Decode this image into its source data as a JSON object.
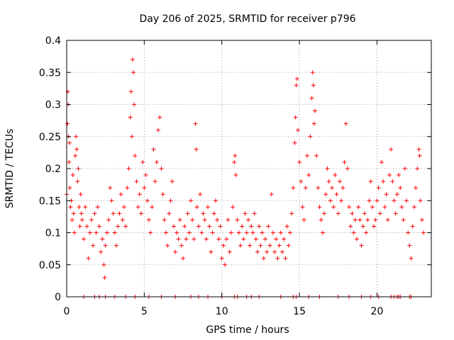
{
  "chart_data": {
    "type": "scatter",
    "title": "Day 206 of 2025, SRMTID for receiver p796",
    "xlabel": "GPS time / hours",
    "ylabel": "SRMTID / TECUs",
    "xlim": [
      0,
      23.5
    ],
    "ylim": [
      0,
      0.4
    ],
    "x_ticks": [
      0,
      5,
      10,
      15,
      20
    ],
    "x_tick_labels": [
      "0",
      "5",
      "10",
      "15",
      "20"
    ],
    "y_ticks": [
      0,
      0.05,
      0.1,
      0.15,
      0.2,
      0.25,
      0.3,
      0.35,
      0.4
    ],
    "y_tick_labels": [
      "0",
      "0.05",
      "0.1",
      "0.15",
      "0.2",
      "0.25",
      "0.3",
      "0.35",
      "0.4"
    ],
    "grid": true,
    "marker": "+",
    "color": "#ff0000",
    "series": [
      {
        "name": "SRMTID",
        "points": [
          [
            0.0,
            0.16
          ],
          [
            0.05,
            0.27
          ],
          [
            0.08,
            0.32
          ],
          [
            0.1,
            0.3
          ],
          [
            0.12,
            0.25
          ],
          [
            0.15,
            0.21
          ],
          [
            0.18,
            0.24
          ],
          [
            0.2,
            0.17
          ],
          [
            0.25,
            0.14
          ],
          [
            0.3,
            0.15
          ],
          [
            0.35,
            0.12
          ],
          [
            0.4,
            0.19
          ],
          [
            0.45,
            0.13
          ],
          [
            0.5,
            0.1
          ],
          [
            0.55,
            0.22
          ],
          [
            0.6,
            0.25
          ],
          [
            0.65,
            0.23
          ],
          [
            0.7,
            0.18
          ],
          [
            0.75,
            0.2
          ],
          [
            0.8,
            0.14
          ],
          [
            0.85,
            0.11
          ],
          [
            0.9,
            0.16
          ],
          [
            0.95,
            0.13
          ],
          [
            1.0,
            0.12
          ],
          [
            1.1,
            0.09
          ],
          [
            1.2,
            0.14
          ],
          [
            1.3,
            0.11
          ],
          [
            1.4,
            0.06
          ],
          [
            1.5,
            0.1
          ],
          [
            1.6,
            0.12
          ],
          [
            1.7,
            0.08
          ],
          [
            1.8,
            0.13
          ],
          [
            1.9,
            0.1
          ],
          [
            2.0,
            0.14
          ],
          [
            2.1,
            0.11
          ],
          [
            2.2,
            0.07
          ],
          [
            2.3,
            0.09
          ],
          [
            2.4,
            0.05
          ],
          [
            2.45,
            0.03
          ],
          [
            2.5,
            0.08
          ],
          [
            2.6,
            0.1
          ],
          [
            2.7,
            0.12
          ],
          [
            2.8,
            0.17
          ],
          [
            2.9,
            0.15
          ],
          [
            3.0,
            0.13
          ],
          [
            3.1,
            0.1
          ],
          [
            3.2,
            0.08
          ],
          [
            3.3,
            0.11
          ],
          [
            3.4,
            0.13
          ],
          [
            3.5,
            0.16
          ],
          [
            3.6,
            0.12
          ],
          [
            3.7,
            0.14
          ],
          [
            3.8,
            0.11
          ],
          [
            3.9,
            0.17
          ],
          [
            4.0,
            0.2
          ],
          [
            4.1,
            0.28
          ],
          [
            4.15,
            0.32
          ],
          [
            4.2,
            0.25
          ],
          [
            4.25,
            0.37
          ],
          [
            4.3,
            0.35
          ],
          [
            4.35,
            0.3
          ],
          [
            4.4,
            0.22
          ],
          [
            4.5,
            0.18
          ],
          [
            4.6,
            0.14
          ],
          [
            4.7,
            0.16
          ],
          [
            4.8,
            0.13
          ],
          [
            4.9,
            0.21
          ],
          [
            5.0,
            0.17
          ],
          [
            5.1,
            0.19
          ],
          [
            5.2,
            0.15
          ],
          [
            5.3,
            0.12
          ],
          [
            5.4,
            0.1
          ],
          [
            5.5,
            0.14
          ],
          [
            5.6,
            0.23
          ],
          [
            5.7,
            0.18
          ],
          [
            5.8,
            0.21
          ],
          [
            5.9,
            0.26
          ],
          [
            6.0,
            0.28
          ],
          [
            6.1,
            0.2
          ],
          [
            6.2,
            0.16
          ],
          [
            6.3,
            0.12
          ],
          [
            6.4,
            0.1
          ],
          [
            6.5,
            0.08
          ],
          [
            6.6,
            0.13
          ],
          [
            6.7,
            0.15
          ],
          [
            6.8,
            0.18
          ],
          [
            6.9,
            0.11
          ],
          [
            7.0,
            0.07
          ],
          [
            7.1,
            0.1
          ],
          [
            7.2,
            0.09
          ],
          [
            7.3,
            0.12
          ],
          [
            7.4,
            0.08
          ],
          [
            7.5,
            0.06
          ],
          [
            7.6,
            0.11
          ],
          [
            7.7,
            0.09
          ],
          [
            7.8,
            0.13
          ],
          [
            7.9,
            0.1
          ],
          [
            8.0,
            0.15
          ],
          [
            8.1,
            0.12
          ],
          [
            8.2,
            0.09
          ],
          [
            8.3,
            0.27
          ],
          [
            8.35,
            0.23
          ],
          [
            8.4,
            0.14
          ],
          [
            8.5,
            0.11
          ],
          [
            8.6,
            0.16
          ],
          [
            8.7,
            0.1
          ],
          [
            8.8,
            0.13
          ],
          [
            8.9,
            0.12
          ],
          [
            9.0,
            0.09
          ],
          [
            9.1,
            0.14
          ],
          [
            9.2,
            0.11
          ],
          [
            9.3,
            0.07
          ],
          [
            9.4,
            0.1
          ],
          [
            9.5,
            0.13
          ],
          [
            9.6,
            0.15
          ],
          [
            9.7,
            0.12
          ],
          [
            9.8,
            0.09
          ],
          [
            9.9,
            0.11
          ],
          [
            10.0,
            0.06
          ],
          [
            10.1,
            0.08
          ],
          [
            10.2,
            0.05
          ],
          [
            10.3,
            0.09
          ],
          [
            10.4,
            0.12
          ],
          [
            10.5,
            0.07
          ],
          [
            10.6,
            0.1
          ],
          [
            10.7,
            0.14
          ],
          [
            10.8,
            0.21
          ],
          [
            10.85,
            0.22
          ],
          [
            10.9,
            0.19
          ],
          [
            11.0,
            0.12
          ],
          [
            11.1,
            0.1
          ],
          [
            11.2,
            0.08
          ],
          [
            11.3,
            0.11
          ],
          [
            11.4,
            0.09
          ],
          [
            11.5,
            0.13
          ],
          [
            11.6,
            0.1
          ],
          [
            11.7,
            0.12
          ],
          [
            11.8,
            0.08
          ],
          [
            11.9,
            0.11
          ],
          [
            12.0,
            0.1
          ],
          [
            12.1,
            0.13
          ],
          [
            12.2,
            0.09
          ],
          [
            12.3,
            0.07
          ],
          [
            12.4,
            0.11
          ],
          [
            12.5,
            0.08
          ],
          [
            12.6,
            0.1
          ],
          [
            12.7,
            0.06
          ],
          [
            12.8,
            0.09
          ],
          [
            12.9,
            0.07
          ],
          [
            13.0,
            0.11
          ],
          [
            13.1,
            0.08
          ],
          [
            13.2,
            0.16
          ],
          [
            13.3,
            0.1
          ],
          [
            13.4,
            0.07
          ],
          [
            13.5,
            0.09
          ],
          [
            13.6,
            0.06
          ],
          [
            13.7,
            0.08
          ],
          [
            13.8,
            0.1
          ],
          [
            13.9,
            0.07
          ],
          [
            14.0,
            0.09
          ],
          [
            14.1,
            0.06
          ],
          [
            14.2,
            0.11
          ],
          [
            14.3,
            0.08
          ],
          [
            14.4,
            0.1
          ],
          [
            14.5,
            0.13
          ],
          [
            14.6,
            0.17
          ],
          [
            14.7,
            0.24
          ],
          [
            14.75,
            0.28
          ],
          [
            14.8,
            0.33
          ],
          [
            14.85,
            0.34
          ],
          [
            14.9,
            0.26
          ],
          [
            15.0,
            0.21
          ],
          [
            15.1,
            0.18
          ],
          [
            15.2,
            0.14
          ],
          [
            15.3,
            0.12
          ],
          [
            15.4,
            0.17
          ],
          [
            15.5,
            0.22
          ],
          [
            15.6,
            0.19
          ],
          [
            15.7,
            0.25
          ],
          [
            15.8,
            0.31
          ],
          [
            15.85,
            0.35
          ],
          [
            15.9,
            0.33
          ],
          [
            15.95,
            0.27
          ],
          [
            16.0,
            0.29
          ],
          [
            16.1,
            0.22
          ],
          [
            16.2,
            0.17
          ],
          [
            16.3,
            0.14
          ],
          [
            16.4,
            0.12
          ],
          [
            16.5,
            0.1
          ],
          [
            16.6,
            0.13
          ],
          [
            16.7,
            0.16
          ],
          [
            16.8,
            0.2
          ],
          [
            16.9,
            0.18
          ],
          [
            17.0,
            0.15
          ],
          [
            17.1,
            0.17
          ],
          [
            17.2,
            0.14
          ],
          [
            17.3,
            0.19
          ],
          [
            17.4,
            0.16
          ],
          [
            17.5,
            0.13
          ],
          [
            17.6,
            0.18
          ],
          [
            17.7,
            0.15
          ],
          [
            17.8,
            0.17
          ],
          [
            17.9,
            0.21
          ],
          [
            18.0,
            0.27
          ],
          [
            18.1,
            0.2
          ],
          [
            18.2,
            0.14
          ],
          [
            18.3,
            0.11
          ],
          [
            18.4,
            0.13
          ],
          [
            18.5,
            0.1
          ],
          [
            18.6,
            0.12
          ],
          [
            18.7,
            0.09
          ],
          [
            18.8,
            0.14
          ],
          [
            18.9,
            0.12
          ],
          [
            19.0,
            0.08
          ],
          [
            19.1,
            0.11
          ],
          [
            19.2,
            0.13
          ],
          [
            19.3,
            0.1
          ],
          [
            19.4,
            0.12
          ],
          [
            19.5,
            0.15
          ],
          [
            19.6,
            0.18
          ],
          [
            19.7,
            0.14
          ],
          [
            19.8,
            0.11
          ],
          [
            19.9,
            0.12
          ],
          [
            20.0,
            0.15
          ],
          [
            20.1,
            0.17
          ],
          [
            20.2,
            0.13
          ],
          [
            20.3,
            0.21
          ],
          [
            20.4,
            0.18
          ],
          [
            20.5,
            0.14
          ],
          [
            20.6,
            0.16
          ],
          [
            20.7,
            0.12
          ],
          [
            20.8,
            0.19
          ],
          [
            20.9,
            0.23
          ],
          [
            21.0,
            0.18
          ],
          [
            21.1,
            0.15
          ],
          [
            21.2,
            0.13
          ],
          [
            21.3,
            0.16
          ],
          [
            21.4,
            0.19
          ],
          [
            21.5,
            0.17
          ],
          [
            21.6,
            0.14
          ],
          [
            21.7,
            0.12
          ],
          [
            21.8,
            0.2
          ],
          [
            21.9,
            0.15
          ],
          [
            22.0,
            0.1
          ],
          [
            22.1,
            0.08
          ],
          [
            22.2,
            0.06
          ],
          [
            22.3,
            0.11
          ],
          [
            22.4,
            0.14
          ],
          [
            22.5,
            0.17
          ],
          [
            22.6,
            0.2
          ],
          [
            22.7,
            0.23
          ],
          [
            22.75,
            0.22
          ],
          [
            22.8,
            0.15
          ],
          [
            22.9,
            0.12
          ],
          [
            23.0,
            0.1
          ]
        ],
        "zero_points_x": [
          1.1,
          1.8,
          2.1,
          2.5,
          3.1,
          3.8,
          4.4,
          5.3,
          6.1,
          7.0,
          8.0,
          8.5,
          9.1,
          10.0,
          10.8,
          11.0,
          11.6,
          11.9,
          12.4,
          13.8,
          14.6,
          14.8,
          15.6,
          16.3,
          17.5,
          18.2,
          19.0,
          19.6,
          20.1,
          20.9,
          21.1,
          21.3,
          21.4,
          21.5,
          22.1,
          22.2
        ]
      }
    ]
  }
}
